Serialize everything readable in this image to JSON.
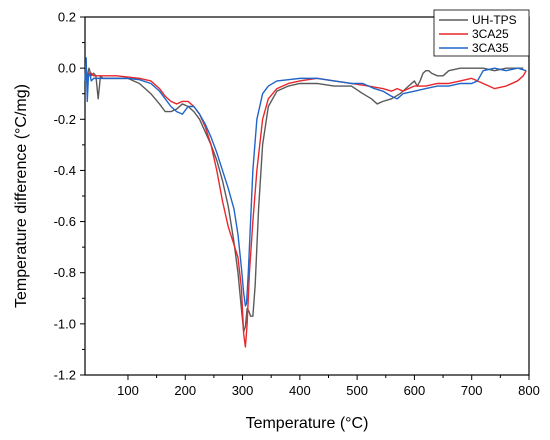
{
  "chart_data": {
    "type": "line",
    "xlabel": "Temperature (°C)",
    "ylabel": "Temperature difference (°C/mg)",
    "xlim": [
      25,
      800
    ],
    "ylim": [
      -1.2,
      0.2
    ],
    "xticks": [
      100,
      200,
      300,
      400,
      500,
      600,
      700,
      800
    ],
    "yticks": [
      0.2,
      0.0,
      -0.2,
      -0.4,
      -0.6,
      -0.8,
      -1.0,
      -1.2
    ],
    "ytick_labels": [
      "0.2",
      "0.0",
      "-0.2",
      "-0.4",
      "-0.6",
      "-0.8",
      "-1.0",
      "-1.2"
    ],
    "grid": false,
    "legend_position": "top-right",
    "series": [
      {
        "name": "UH-TPS",
        "color": "#5a5a5a",
        "x": [
          25,
          28,
          32,
          36,
          40,
          44,
          48,
          52,
          56,
          60,
          80,
          100,
          120,
          140,
          155,
          165,
          175,
          185,
          195,
          205,
          215,
          225,
          235,
          245,
          255,
          265,
          275,
          285,
          292,
          298,
          302,
          305,
          308,
          311,
          314,
          318,
          322,
          328,
          335,
          345,
          360,
          380,
          400,
          430,
          460,
          490,
          510,
          525,
          535,
          545,
          560,
          575,
          590,
          600,
          605,
          610,
          615,
          620,
          625,
          630,
          640,
          650,
          660,
          680,
          700,
          720,
          740,
          760,
          780,
          790
        ],
        "y": [
          -0.02,
          -0.04,
          0.0,
          -0.03,
          -0.02,
          -0.03,
          -0.12,
          -0.03,
          -0.04,
          -0.04,
          -0.04,
          -0.04,
          -0.06,
          -0.1,
          -0.14,
          -0.17,
          -0.17,
          -0.16,
          -0.14,
          -0.15,
          -0.17,
          -0.2,
          -0.25,
          -0.3,
          -0.36,
          -0.44,
          -0.54,
          -0.68,
          -0.8,
          -0.94,
          -1.03,
          -1.01,
          -0.94,
          -0.95,
          -0.97,
          -0.97,
          -0.85,
          -0.55,
          -0.3,
          -0.15,
          -0.09,
          -0.07,
          -0.06,
          -0.06,
          -0.07,
          -0.07,
          -0.1,
          -0.12,
          -0.14,
          -0.13,
          -0.12,
          -0.1,
          -0.07,
          -0.05,
          -0.07,
          -0.05,
          -0.02,
          -0.01,
          -0.01,
          -0.02,
          -0.03,
          -0.03,
          -0.01,
          0.0,
          0.0,
          0.0,
          -0.01,
          0.0,
          0.0,
          0.0
        ]
      },
      {
        "name": "3CA25",
        "color": "#e8282c",
        "x": [
          25,
          28,
          32,
          36,
          40,
          50,
          60,
          80,
          100,
          120,
          140,
          155,
          165,
          175,
          185,
          195,
          205,
          215,
          225,
          235,
          245,
          255,
          265,
          275,
          285,
          292,
          298,
          302,
          305,
          308,
          312,
          318,
          325,
          335,
          345,
          360,
          380,
          400,
          430,
          460,
          490,
          520,
          545,
          560,
          570,
          580,
          600,
          620,
          640,
          660,
          680,
          700,
          720,
          740,
          760,
          780,
          790,
          795
        ],
        "y": [
          -0.03,
          -0.05,
          -0.02,
          -0.02,
          -0.03,
          -0.03,
          -0.03,
          -0.03,
          -0.035,
          -0.04,
          -0.05,
          -0.08,
          -0.11,
          -0.13,
          -0.14,
          -0.13,
          -0.13,
          -0.15,
          -0.18,
          -0.23,
          -0.3,
          -0.4,
          -0.52,
          -0.62,
          -0.69,
          -0.74,
          -0.86,
          -1.04,
          -1.09,
          -1.0,
          -0.8,
          -0.6,
          -0.4,
          -0.2,
          -0.12,
          -0.08,
          -0.06,
          -0.05,
          -0.04,
          -0.05,
          -0.06,
          -0.07,
          -0.08,
          -0.09,
          -0.08,
          -0.09,
          -0.07,
          -0.07,
          -0.06,
          -0.06,
          -0.05,
          -0.04,
          -0.06,
          -0.08,
          -0.07,
          -0.05,
          -0.03,
          -0.01
        ]
      },
      {
        "name": "3CA35",
        "color": "#1f66c8",
        "x": [
          25,
          27,
          29,
          31,
          33,
          36,
          40,
          50,
          60,
          80,
          100,
          120,
          140,
          155,
          165,
          175,
          185,
          195,
          205,
          215,
          225,
          235,
          245,
          255,
          265,
          275,
          285,
          292,
          298,
          302,
          305,
          307,
          310,
          314,
          318,
          325,
          335,
          345,
          360,
          380,
          400,
          430,
          460,
          490,
          510,
          530,
          545,
          560,
          570,
          580,
          600,
          620,
          640,
          660,
          680,
          700,
          710,
          720,
          740,
          760,
          780,
          795
        ],
        "y": [
          -0.05,
          0.04,
          -0.13,
          -0.03,
          -0.02,
          -0.05,
          -0.04,
          -0.04,
          -0.04,
          -0.04,
          -0.04,
          -0.045,
          -0.06,
          -0.09,
          -0.12,
          -0.15,
          -0.17,
          -0.18,
          -0.15,
          -0.15,
          -0.18,
          -0.22,
          -0.27,
          -0.33,
          -0.4,
          -0.47,
          -0.55,
          -0.65,
          -0.78,
          -0.88,
          -0.93,
          -0.92,
          -0.8,
          -0.6,
          -0.4,
          -0.2,
          -0.1,
          -0.07,
          -0.05,
          -0.045,
          -0.04,
          -0.04,
          -0.05,
          -0.06,
          -0.06,
          -0.08,
          -0.09,
          -0.11,
          -0.12,
          -0.1,
          -0.09,
          -0.08,
          -0.07,
          -0.07,
          -0.06,
          -0.06,
          -0.05,
          -0.01,
          0.0,
          -0.01,
          0.0,
          -0.01
        ]
      }
    ]
  }
}
